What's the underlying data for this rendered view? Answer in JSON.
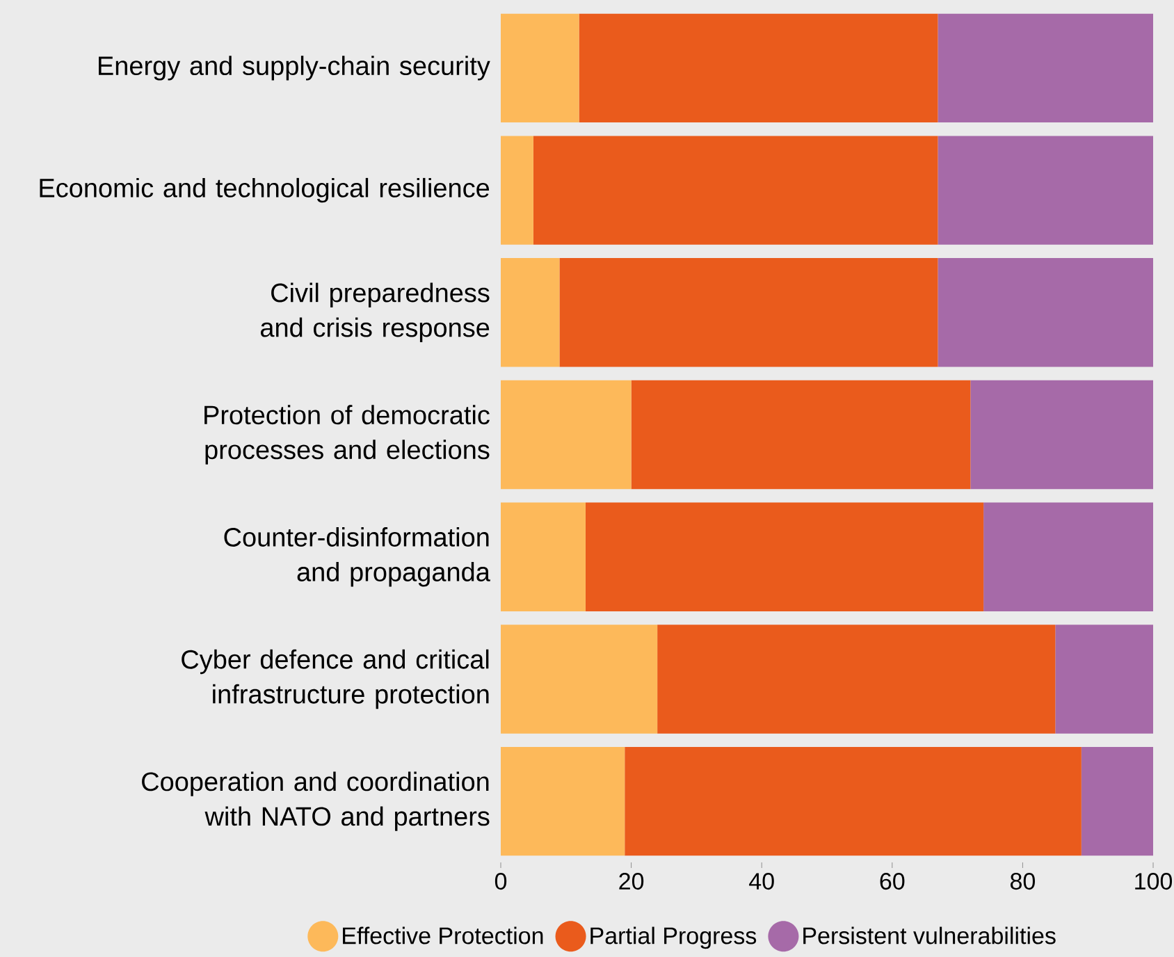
{
  "chart_data": {
    "type": "bar",
    "orientation": "horizontal",
    "stacked": true,
    "categories": [
      "Energy and supply-chain security",
      "Economic and technological resilience",
      "Civil preparedness and crisis response",
      "Protection of democratic processes and elections",
      "Counter-disinformation and propaganda",
      "Cyber defence and critical infrastructure protection",
      "Cooperation and coordination with NATO and partners"
    ],
    "series": [
      {
        "name": "Effective Protection",
        "color": "#fdb95a",
        "values": [
          12,
          5,
          9,
          20,
          13,
          24,
          19
        ]
      },
      {
        "name": "Partial Progress",
        "color": "#ea5b1c",
        "values": [
          55,
          62,
          58,
          52,
          61,
          61,
          70
        ]
      },
      {
        "name": "Persistent vulnerabilities",
        "color": "#a66aa8",
        "values": [
          33,
          33,
          33,
          28,
          26,
          15,
          11
        ]
      }
    ],
    "xlim": [
      0,
      100
    ],
    "xticks": [
      0,
      20,
      40,
      60,
      80,
      100
    ],
    "legend": "bottom"
  }
}
